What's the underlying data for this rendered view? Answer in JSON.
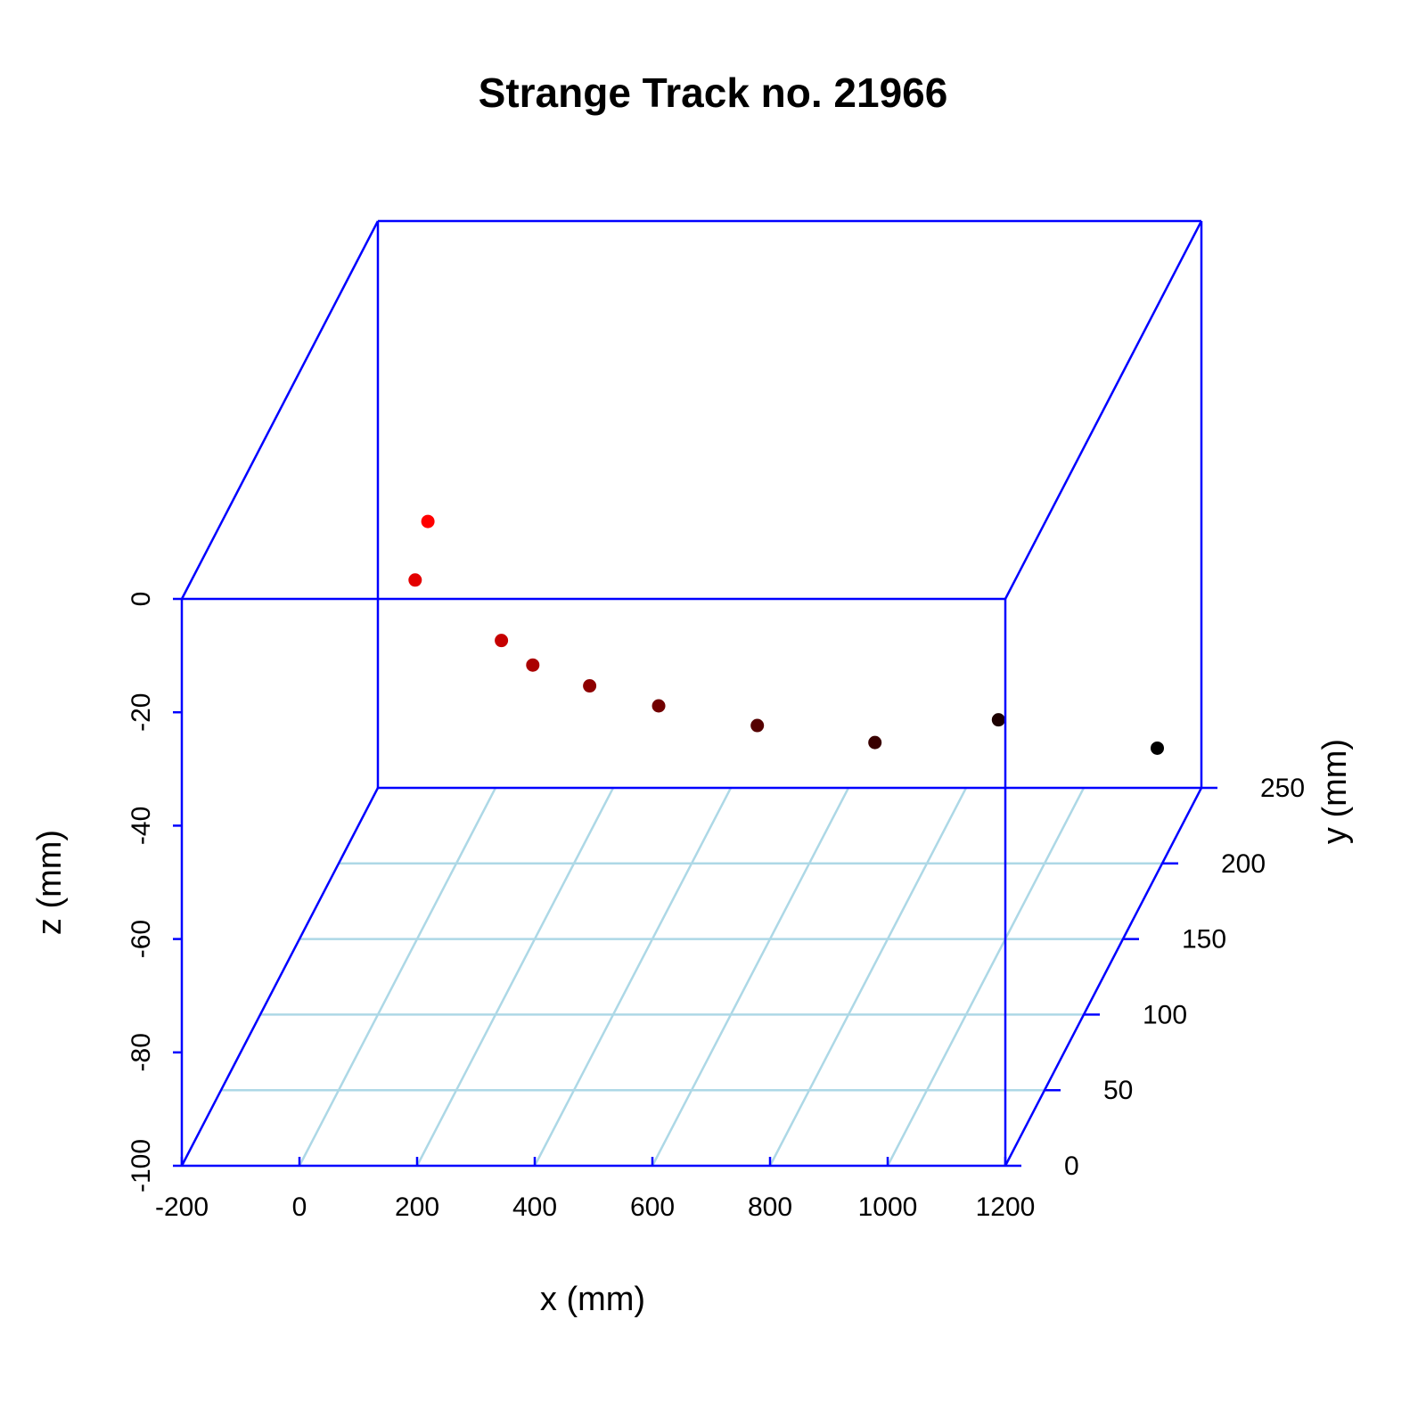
{
  "chart_data": {
    "type": "scatter",
    "title": "Strange Track no. 21966",
    "xlabel": "x (mm)",
    "ylabel": "y (mm)",
    "zlabel": "z (mm)",
    "xlim": [
      -200,
      1200
    ],
    "ylim": [
      0,
      250
    ],
    "zlim": [
      -100,
      0
    ],
    "x_ticks": [
      -200,
      0,
      200,
      400,
      600,
      800,
      1000,
      1200
    ],
    "y_ticks": [
      0,
      50,
      100,
      150,
      200,
      250
    ],
    "z_ticks": [
      -100,
      -80,
      -60,
      -40,
      -20,
      0
    ],
    "grid": true,
    "box_color": "#0000ff",
    "grid_color": "#add8e6",
    "point_color_start": "#ff0000",
    "point_color_end": "#000000",
    "points": [
      {
        "x": -115,
        "y": 250,
        "z": -53
      },
      {
        "x": -110,
        "y": 230,
        "z": -58
      },
      {
        "x": 10,
        "y": 250,
        "z": -74
      },
      {
        "x": 70,
        "y": 245,
        "z": -77
      },
      {
        "x": 160,
        "y": 250,
        "z": -82
      },
      {
        "x": 280,
        "y": 248,
        "z": -85
      },
      {
        "x": 445,
        "y": 250,
        "z": -89
      },
      {
        "x": 645,
        "y": 250,
        "z": -92
      },
      {
        "x": 855,
        "y": 250,
        "z": -88
      },
      {
        "x": 1125,
        "y": 250,
        "z": -93
      }
    ]
  }
}
